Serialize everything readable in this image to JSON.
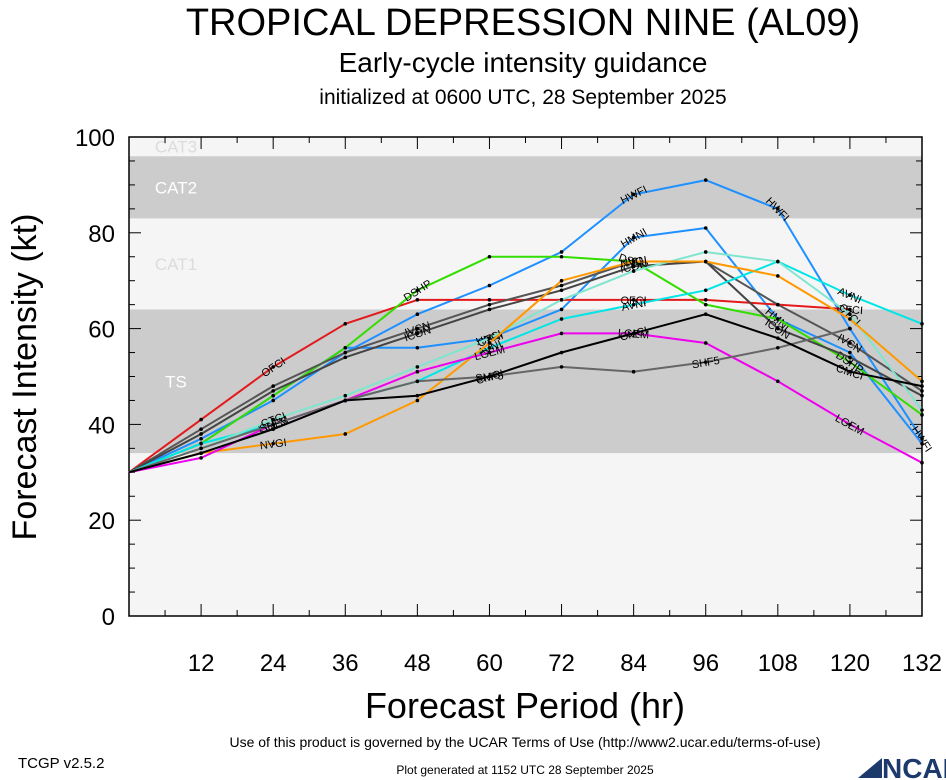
{
  "header": {
    "title": "TROPICAL DEPRESSION NINE (AL09)",
    "subtitle": "Early-cycle intensity guidance",
    "init": "initialized at 0600 UTC, 28 September 2025"
  },
  "footer": {
    "version": "TCGP v2.5.2",
    "terms": "Use of this product is governed by the UCAR Terms of Use (http://www2.ucar.edu/terms-of-use)",
    "generated": "Plot generated at 1152 UTC   28 September 2025",
    "logo": "NCAR"
  },
  "chart_data": {
    "type": "line",
    "xlabel": "Forecast Period (hr)",
    "ylabel": "Forecast Intensity (kt)",
    "xlim": [
      0,
      132
    ],
    "ylim": [
      0,
      100
    ],
    "xticks": [
      12,
      24,
      36,
      48,
      60,
      72,
      84,
      96,
      108,
      120,
      132
    ],
    "yticks": [
      0,
      20,
      40,
      60,
      80,
      100
    ],
    "bands": [
      {
        "name": "TS",
        "from": 34,
        "to": 64,
        "shade": "dark"
      },
      {
        "name": "CAT1",
        "from": 64,
        "to": 83,
        "shade": "light"
      },
      {
        "name": "CAT2",
        "from": 83,
        "to": 96,
        "shade": "dark"
      },
      {
        "name": "CAT3",
        "from": 96,
        "to": 100,
        "shade": "light"
      }
    ],
    "series": [
      {
        "name": "HWFI",
        "color": "#1e90ff",
        "x": [
          0,
          12,
          24,
          36,
          48,
          60,
          72,
          84,
          96,
          108,
          120,
          132
        ],
        "y": [
          30,
          37,
          45,
          55,
          63,
          69,
          76,
          88,
          91,
          85,
          60,
          37
        ],
        "labels": [
          [
            84,
            "HWFI"
          ],
          [
            108,
            "HWFI"
          ],
          [
            132,
            "HWFI"
          ]
        ]
      },
      {
        "name": "HMNI",
        "color": "#1e90ff",
        "x": [
          0,
          12,
          24,
          36,
          48,
          60,
          72,
          84,
          96,
          108,
          120,
          132
        ],
        "y": [
          30,
          36,
          46,
          56,
          56,
          58,
          64,
          79,
          81,
          62,
          55,
          36
        ],
        "labels": [
          [
            60,
            "HMNI"
          ],
          [
            84,
            "HMNI"
          ],
          [
            108,
            "HMNI"
          ]
        ]
      },
      {
        "name": "OFCI",
        "color": "#e31a1c",
        "x": [
          0,
          12,
          24,
          36,
          48,
          60,
          72,
          84,
          96,
          108,
          120
        ],
        "y": [
          30,
          41,
          52,
          61,
          66,
          66,
          66,
          66,
          66,
          65,
          64
        ],
        "labels": [
          [
            24,
            "OFCI"
          ],
          [
            84,
            "OFCI"
          ],
          [
            120,
            "OFCI"
          ]
        ]
      },
      {
        "name": "DSHP",
        "color": "#33dd00",
        "x": [
          0,
          12,
          24,
          36,
          48,
          60,
          72,
          84,
          96,
          108,
          120,
          132
        ],
        "y": [
          30,
          36,
          46,
          56,
          68,
          75,
          75,
          74,
          65,
          62,
          53,
          42
        ],
        "labels": [
          [
            48,
            "DSHP"
          ],
          [
            84,
            "DSHP"
          ],
          [
            120,
            "DSHP"
          ]
        ]
      },
      {
        "name": "IVCN",
        "color": "#555555",
        "x": [
          0,
          12,
          24,
          36,
          48,
          60,
          72,
          84,
          96,
          108,
          120,
          132
        ],
        "y": [
          30,
          39,
          48,
          55,
          60,
          65,
          69,
          74,
          74,
          65,
          57,
          47
        ],
        "labels": [
          [
            48,
            "IVCN"
          ],
          [
            84,
            "IVCN"
          ],
          [
            120,
            "IVCN"
          ]
        ]
      },
      {
        "name": "ICON",
        "color": "#444444",
        "x": [
          0,
          12,
          24,
          36,
          48,
          60,
          72,
          84,
          96,
          108,
          120,
          132
        ],
        "y": [
          30,
          38,
          47,
          54,
          59,
          64,
          68,
          73,
          74,
          60,
          54,
          46
        ],
        "labels": [
          [
            48,
            "ICON"
          ],
          [
            84,
            "ICON"
          ],
          [
            108,
            "ICON"
          ]
        ]
      },
      {
        "name": "AVNI",
        "color": "#00e5e5",
        "x": [
          0,
          12,
          24,
          36,
          48,
          60,
          72,
          84,
          96,
          108,
          120,
          132
        ],
        "y": [
          30,
          36,
          40,
          45,
          49,
          56,
          62,
          65,
          68,
          74,
          67,
          61
        ],
        "labels": [
          [
            60,
            "AVNI"
          ],
          [
            84,
            "AVNI"
          ],
          [
            120,
            "AVNI"
          ]
        ]
      },
      {
        "name": "CTCI",
        "color": "#7fe5cf",
        "x": [
          0,
          12,
          24,
          36,
          48,
          60,
          72,
          84,
          96,
          108,
          120,
          132
        ],
        "y": [
          30,
          35,
          41,
          46,
          52,
          58,
          66,
          72,
          76,
          74,
          63,
          43
        ],
        "labels": [
          [
            24,
            "CTCI"
          ],
          [
            60,
            "CTCI"
          ],
          [
            120,
            "CTCI"
          ]
        ]
      },
      {
        "name": "NVGI",
        "color": "#ff9900",
        "x": [
          0,
          12,
          24,
          36,
          48,
          60,
          72,
          84,
          96,
          108,
          120,
          132
        ],
        "y": [
          30,
          34,
          36,
          38,
          45,
          57,
          70,
          74,
          74,
          71,
          62,
          49
        ],
        "labels": [
          [
            24,
            "NVGI"
          ],
          [
            84,
            "NVGI"
          ]
        ]
      },
      {
        "name": "LGEM",
        "color": "#ee00ee",
        "x": [
          0,
          12,
          24,
          36,
          48,
          60,
          72,
          84,
          96,
          108,
          120,
          132
        ],
        "y": [
          30,
          33,
          40,
          45,
          51,
          55,
          59,
          59,
          57,
          49,
          40,
          32
        ],
        "labels": [
          [
            24,
            "LGEM"
          ],
          [
            60,
            "LGEM"
          ],
          [
            84,
            "LGEM"
          ],
          [
            120,
            "LGEM"
          ]
        ]
      },
      {
        "name": "SHF5",
        "color": "#666666",
        "x": [
          0,
          12,
          24,
          36,
          48,
          60,
          72,
          84,
          96,
          108,
          120
        ],
        "y": [
          30,
          35,
          40,
          45,
          49,
          50,
          52,
          51,
          53,
          56,
          60
        ],
        "labels": [
          [
            24,
            "SHF5"
          ],
          [
            60,
            "SHF5"
          ],
          [
            96,
            "SHF5"
          ]
        ]
      },
      {
        "name": "CMCI",
        "color": "#000000",
        "x": [
          0,
          12,
          24,
          36,
          48,
          60,
          72,
          84,
          96,
          108,
          120,
          132
        ],
        "y": [
          30,
          34,
          39,
          45,
          46,
          50,
          55,
          59,
          63,
          58,
          51,
          48
        ],
        "labels": [
          [
            60,
            "CMCI"
          ],
          [
            84,
            "CMCI"
          ],
          [
            120,
            "CMCI"
          ]
        ]
      }
    ]
  }
}
